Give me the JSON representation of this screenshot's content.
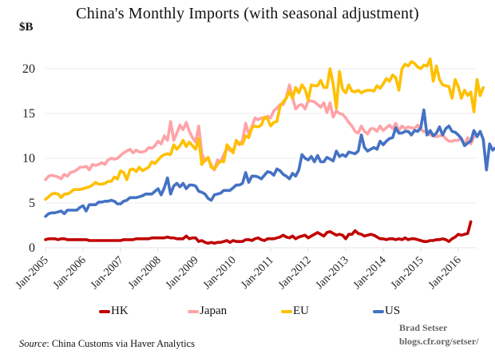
{
  "chart_data": {
    "type": "line",
    "title": "China's Monthly Imports (with seasonal adjustment)",
    "ylabel": "$B",
    "xlabel": "",
    "ylim": [
      0,
      20
    ],
    "yticks": [
      0,
      5,
      10,
      15,
      20
    ],
    "grid": true,
    "legend_position": "bottom",
    "x_start": "Jan-2005",
    "x_frequency": "monthly",
    "xtick_labels": [
      "Jan-2005",
      "Jan-2006",
      "Jan-2007",
      "Jan-2008",
      "Jan-2009",
      "Jan-2010",
      "Jan-2011",
      "Jan-2012",
      "Jan-2013",
      "Jan-2014",
      "Jan-2015",
      "Jan-2016"
    ],
    "series": [
      {
        "name": "HK",
        "color": "#c00000",
        "values": [
          0.9,
          1.0,
          1.0,
          1.0,
          0.9,
          1.0,
          1.0,
          0.9,
          0.9,
          0.9,
          0.9,
          0.9,
          0.9,
          0.9,
          0.8,
          0.8,
          0.8,
          0.8,
          0.8,
          0.8,
          0.8,
          0.8,
          0.8,
          0.8,
          0.8,
          0.9,
          0.9,
          0.9,
          0.9,
          1.0,
          1.0,
          1.0,
          1.0,
          1.0,
          1.1,
          1.1,
          1.1,
          1.1,
          1.1,
          1.2,
          1.1,
          1.1,
          1.0,
          1.0,
          1.0,
          1.3,
          1.0,
          1.1,
          1.1,
          0.7,
          0.8,
          0.6,
          0.5,
          0.6,
          0.5,
          0.6,
          0.6,
          0.7,
          0.8,
          0.6,
          0.8,
          0.7,
          0.7,
          0.7,
          0.9,
          0.9,
          0.8,
          1.0,
          1.1,
          0.9,
          0.8,
          1.0,
          1.0,
          1.0,
          1.1,
          1.2,
          1.4,
          1.2,
          1.1,
          1.3,
          1.0,
          1.2,
          1.3,
          1.4,
          1.1,
          1.3,
          1.5,
          1.7,
          1.5,
          1.3,
          1.7,
          1.8,
          1.6,
          1.4,
          1.5,
          1.4,
          1.0,
          1.5,
          1.5,
          1.9,
          1.6,
          1.5,
          1.3,
          1.4,
          1.5,
          1.4,
          1.2,
          1.0,
          1.0,
          0.9,
          1.0,
          1.0,
          0.9,
          1.0,
          0.9,
          1.1,
          0.9,
          1.0,
          1.0,
          0.9,
          0.8,
          0.7,
          0.7,
          0.8,
          0.8,
          0.9,
          0.9,
          1.0,
          0.9,
          0.7,
          1.0,
          1.2,
          1.5,
          1.4,
          1.5,
          1.6,
          2.9
        ]
      },
      {
        "name": "Japan",
        "color": "#ffa3a8",
        "values": [
          7.6,
          8.0,
          8.1,
          8.0,
          7.9,
          7.7,
          8.2,
          8.0,
          8.4,
          8.5,
          8.7,
          9.0,
          9.0,
          9.1,
          8.7,
          9.3,
          9.2,
          9.3,
          9.5,
          9.3,
          9.8,
          10.0,
          9.9,
          10.0,
          10.3,
          10.6,
          10.8,
          11.0,
          10.6,
          10.9,
          10.7,
          10.7,
          10.8,
          11.2,
          11.1,
          11.4,
          11.9,
          11.6,
          12.5,
          12.0,
          14.1,
          12.0,
          12.8,
          13.7,
          13.2,
          14.0,
          13.0,
          12.3,
          11.8,
          13.6,
          10.5,
          9.7,
          10.0,
          9.2,
          8.7,
          9.8,
          9.6,
          10.4,
          11.1,
          10.9,
          10.7,
          11.9,
          11.5,
          12.0,
          13.9,
          12.7,
          13.5,
          14.5,
          14.3,
          14.5,
          14.4,
          14.7,
          14.5,
          15.3,
          15.6,
          16.0,
          16.0,
          16.8,
          18.2,
          16.8,
          15.5,
          15.9,
          16.0,
          15.5,
          16.4,
          16.4,
          16.3,
          16.0,
          15.7,
          16.2,
          15.1,
          16.2,
          14.6,
          15.3,
          15.0,
          14.9,
          14.5,
          14.0,
          13.6,
          13.0,
          12.8,
          13.6,
          13.0,
          12.7,
          13.3,
          13.3,
          13.0,
          13.6,
          13.1,
          13.4,
          13.7,
          13.3,
          13.9,
          13.1,
          13.6,
          13.3,
          13.5,
          13.4,
          13.3,
          13.7,
          13.2,
          13.0,
          12.9,
          12.6,
          12.5,
          12.4,
          12.5,
          12.6,
          12.2,
          11.9,
          11.9,
          12.0,
          12.0,
          12.2,
          11.5,
          12.3,
          11.6,
          12.4
        ]
      },
      {
        "name": "EU",
        "color": "#ffc000",
        "values": [
          5.4,
          5.7,
          6.0,
          6.1,
          6.0,
          5.6,
          6.0,
          6.0,
          6.2,
          6.5,
          6.5,
          6.5,
          6.6,
          6.7,
          6.8,
          7.0,
          7.3,
          7.1,
          7.1,
          7.2,
          7.4,
          7.4,
          7.9,
          7.7,
          8.6,
          8.4,
          7.6,
          8.7,
          8.8,
          8.5,
          9.0,
          8.6,
          8.8,
          9.0,
          9.6,
          9.4,
          9.8,
          10.2,
          10.4,
          10.5,
          10.4,
          11.5,
          11.0,
          11.4,
          12.0,
          11.3,
          11.8,
          11.4,
          11.0,
          12.2,
          9.3,
          9.8,
          10.1,
          9.0,
          8.8,
          9.3,
          9.7,
          9.6,
          11.5,
          11.1,
          10.6,
          12.0,
          11.6,
          11.6,
          12.5,
          12.3,
          13.4,
          13.6,
          13.5,
          13.7,
          14.6,
          14.4,
          13.6,
          14.0,
          14.1,
          15.8,
          16.3,
          16.7,
          17.5,
          16.7,
          17.9,
          17.3,
          18.2,
          17.7,
          16.5,
          18.2,
          18.1,
          18.1,
          18.7,
          17.9,
          17.9,
          20.0,
          18.3,
          15.6,
          19.7,
          17.7,
          17.3,
          18.2,
          17.5,
          17.4,
          17.6,
          17.3,
          17.5,
          17.6,
          17.6,
          17.5,
          18.1,
          17.8,
          18.3,
          18.9,
          18.6,
          19.3,
          19.0,
          17.6,
          20.0,
          20.5,
          20.3,
          20.8,
          20.6,
          20.2,
          20.0,
          20.4,
          20.3,
          21.1,
          18.6,
          20.3,
          18.8,
          18.2,
          18.1,
          18.0,
          16.7,
          18.8,
          18.0,
          16.7,
          17.6,
          17.0,
          17.4,
          15.2,
          18.8,
          17.0,
          17.9
        ]
      },
      {
        "name": "US",
        "color": "#4472c4",
        "values": [
          3.5,
          3.8,
          3.9,
          3.9,
          4.0,
          4.1,
          3.8,
          4.2,
          4.2,
          4.2,
          4.2,
          4.5,
          4.7,
          4.1,
          4.8,
          4.8,
          4.8,
          5.1,
          5.1,
          5.2,
          5.2,
          5.3,
          5.2,
          4.9,
          4.9,
          5.2,
          5.3,
          5.6,
          5.6,
          5.6,
          5.7,
          5.8,
          6.0,
          6.0,
          6.0,
          6.3,
          6.6,
          5.9,
          6.7,
          7.8,
          6.0,
          6.9,
          7.2,
          6.8,
          7.2,
          6.6,
          7.0,
          7.0,
          6.9,
          6.3,
          6.2,
          6.0,
          5.5,
          5.3,
          5.9,
          6.0,
          6.1,
          6.4,
          6.4,
          6.4,
          6.7,
          7.0,
          7.0,
          7.2,
          8.4,
          7.3,
          8.0,
          8.0,
          7.9,
          7.7,
          8.1,
          8.5,
          8.4,
          8.1,
          8.8,
          8.6,
          8.2,
          8.0,
          7.7,
          8.3,
          8.0,
          8.7,
          10.4,
          10.0,
          9.8,
          10.2,
          9.6,
          10.3,
          9.6,
          9.6,
          10.1,
          9.9,
          9.7,
          10.8,
          10.2,
          10.4,
          10.2,
          10.7,
          10.6,
          10.5,
          10.8,
          12.6,
          11.2,
          10.8,
          11.0,
          11.2,
          11.0,
          11.9,
          11.5,
          11.9,
          12.2,
          12.3,
          13.4,
          12.8,
          12.8,
          13.0,
          13.0,
          12.6,
          13.1,
          13.0,
          13.4,
          15.4,
          12.6,
          13.1,
          12.5,
          12.8,
          13.5,
          12.6,
          13.3,
          13.6,
          13.0,
          12.9,
          12.6,
          12.2,
          11.4,
          11.7,
          11.9,
          13.1,
          12.4,
          13.0,
          12.1,
          8.7,
          11.6,
          10.9,
          11.2
        ]
      }
    ]
  },
  "source_label": "Source",
  "source_text": ": China Customs via Haver Analytics",
  "credit_name": "Brad Setser",
  "credit_url": "blogs.cfr.org/setser/"
}
